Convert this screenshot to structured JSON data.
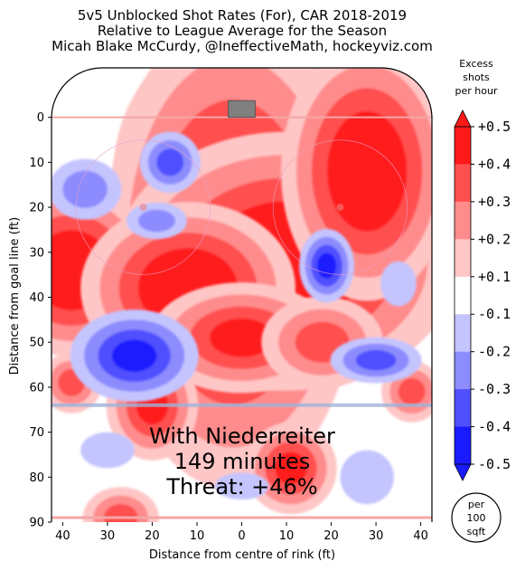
{
  "chart_data": {
    "type": "heatmap",
    "title_lines": [
      "5v5 Unblocked Shot Rates (For), CAR 2018-2019",
      "Relative to League Average for the Season",
      "Micah Blake McCurdy, @IneffectiveMath, hockeyviz.com"
    ],
    "xlabel": "Distance from centre of rink (ft)",
    "ylabel": "Distance from goal line (ft)",
    "xticks": [
      "40",
      "30",
      "20",
      "10",
      "0",
      "10",
      "20",
      "30",
      "40"
    ],
    "yticks": [
      "0",
      "10",
      "20",
      "30",
      "40",
      "50",
      "60",
      "70",
      "80",
      "90"
    ],
    "xlim": [
      -42.5,
      42.5
    ],
    "ylim": [
      -11,
      90
    ],
    "colorbar": {
      "title": [
        "Excess",
        "shots",
        "per hour"
      ],
      "ticks": [
        "+0.5",
        "+0.4",
        "+0.3",
        "+0.2",
        "+0.1",
        "-0.1",
        "-0.2",
        "-0.3",
        "-0.4",
        "-0.5"
      ],
      "colors": [
        "#ff1a1a",
        "#ff5050",
        "#ff8c8c",
        "#ffc6c6",
        "#ffffff",
        "#c4c4ff",
        "#8c8cff",
        "#5050ff",
        "#1a1aff"
      ]
    },
    "annotation": {
      "player": "With Niederreiter",
      "minutes": "149 minutes",
      "threat": "Threat: +46%"
    },
    "unit_badge": [
      "per",
      "100",
      "sqft"
    ],
    "blobs": [
      {
        "x": 5,
        "y": 12,
        "rx": 14,
        "ry": 14,
        "level": 5
      },
      {
        "x": -2,
        "y": 30,
        "rx": 12,
        "ry": 22,
        "level": 5
      },
      {
        "x": 10,
        "y": 32,
        "rx": 16,
        "ry": 12,
        "level": 5
      },
      {
        "x": 28,
        "y": 12,
        "rx": 8,
        "ry": 12,
        "level": 5
      },
      {
        "x": -38,
        "y": 34,
        "rx": 8,
        "ry": 8,
        "level": 5
      },
      {
        "x": -12,
        "y": 38,
        "rx": 10,
        "ry": 8,
        "level": 5
      },
      {
        "x": 0,
        "y": 49,
        "rx": 10,
        "ry": 6,
        "level": 4
      },
      {
        "x": 18,
        "y": 50,
        "rx": 8,
        "ry": 6,
        "level": 3
      },
      {
        "x": -20,
        "y": 64,
        "rx": 5,
        "ry": 6,
        "level": 4
      },
      {
        "x": 11,
        "y": 78,
        "rx": 5,
        "ry": 5,
        "level": 4
      },
      {
        "x": -27,
        "y": 89,
        "rx": 5,
        "ry": 4,
        "level": 3
      },
      {
        "x": 38,
        "y": 61,
        "rx": 4,
        "ry": 4,
        "level": 3
      },
      {
        "x": -38,
        "y": 59,
        "rx": 4,
        "ry": 4,
        "level": 3
      },
      {
        "x": -35,
        "y": 16,
        "rx": 6,
        "ry": 5,
        "level": -2
      },
      {
        "x": -16,
        "y": 10,
        "rx": 4,
        "ry": 4,
        "level": -3
      },
      {
        "x": -24,
        "y": 53,
        "rx": 7,
        "ry": 5,
        "level": -4
      },
      {
        "x": 19,
        "y": 33,
        "rx": 3,
        "ry": 4,
        "level": -4
      },
      {
        "x": 30,
        "y": 54,
        "rx": 6,
        "ry": 3,
        "level": -3
      },
      {
        "x": -19,
        "y": 23,
        "rx": 5,
        "ry": 3,
        "level": -2
      },
      {
        "x": 0,
        "y": 82,
        "rx": 6,
        "ry": 3,
        "level": -1
      },
      {
        "x": -30,
        "y": 74,
        "rx": 6,
        "ry": 4,
        "level": -1
      },
      {
        "x": 35,
        "y": 37,
        "rx": 4,
        "ry": 5,
        "level": -1
      },
      {
        "x": 28,
        "y": 80,
        "rx": 6,
        "ry": 6,
        "level": -1
      }
    ]
  }
}
